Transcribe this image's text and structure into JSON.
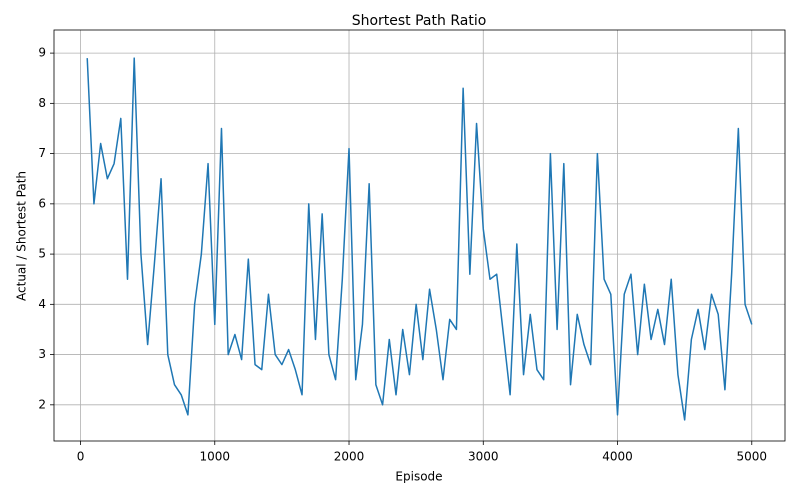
{
  "chart_data": {
    "type": "line",
    "title": "Shortest Path Ratio",
    "x_label": "Episode",
    "y_label": "Actual / Shortest Path",
    "x": [
      50,
      100,
      150,
      200,
      250,
      300,
      350,
      400,
      450,
      500,
      550,
      600,
      650,
      700,
      750,
      800,
      850,
      900,
      950,
      1000,
      1050,
      1100,
      1150,
      1200,
      1250,
      1300,
      1350,
      1400,
      1450,
      1500,
      1550,
      1600,
      1650,
      1700,
      1750,
      1800,
      1850,
      1900,
      1950,
      2000,
      2050,
      2100,
      2150,
      2200,
      2250,
      2300,
      2350,
      2400,
      2450,
      2500,
      2550,
      2600,
      2650,
      2700,
      2750,
      2800,
      2850,
      2900,
      2950,
      3000,
      3050,
      3100,
      3150,
      3200,
      3250,
      3300,
      3350,
      3400,
      3450,
      3500,
      3550,
      3600,
      3650,
      3700,
      3750,
      3800,
      3850,
      3900,
      3950,
      4000,
      4050,
      4100,
      4150,
      4200,
      4250,
      4300,
      4350,
      4400,
      4450,
      4500,
      4550,
      4600,
      4650,
      4700,
      4750,
      4800,
      4850,
      4900,
      4950,
      5000
    ],
    "values": [
      8.9,
      6.0,
      7.2,
      6.5,
      6.8,
      7.7,
      4.5,
      8.9,
      5.0,
      3.2,
      4.8,
      6.5,
      3.0,
      2.4,
      2.2,
      1.8,
      4.0,
      5.0,
      6.8,
      3.6,
      7.5,
      3.0,
      3.4,
      2.9,
      4.9,
      2.8,
      2.7,
      4.2,
      3.0,
      2.8,
      3.1,
      2.7,
      2.2,
      6.0,
      3.3,
      5.8,
      3.0,
      2.5,
      4.5,
      7.1,
      2.5,
      3.6,
      6.4,
      2.4,
      2.0,
      3.3,
      2.2,
      3.5,
      2.6,
      4.0,
      2.9,
      4.3,
      3.5,
      2.5,
      3.7,
      3.5,
      8.3,
      4.6,
      7.6,
      5.5,
      4.5,
      4.6,
      3.4,
      2.2,
      5.2,
      2.6,
      3.8,
      2.7,
      2.5,
      7.0,
      3.5,
      6.8,
      2.4,
      3.8,
      3.2,
      2.8,
      7.0,
      4.5,
      4.2,
      1.8,
      4.2,
      4.6,
      3.0,
      4.4,
      3.3,
      3.9,
      3.2,
      4.5,
      2.6,
      1.7,
      3.3,
      3.9,
      3.1,
      4.2,
      3.8,
      2.3,
      4.6,
      7.5,
      4.0,
      3.6
    ],
    "color": "#1f77b4",
    "xlim": [
      -197.5,
      5247.5
    ],
    "xticks": [
      0,
      1000,
      2000,
      3000,
      4000,
      5000
    ],
    "ylim": [
      1.28,
      9.46
    ],
    "yticks": [
      2,
      3,
      4,
      5,
      6,
      7,
      8,
      9
    ],
    "grid": true
  }
}
